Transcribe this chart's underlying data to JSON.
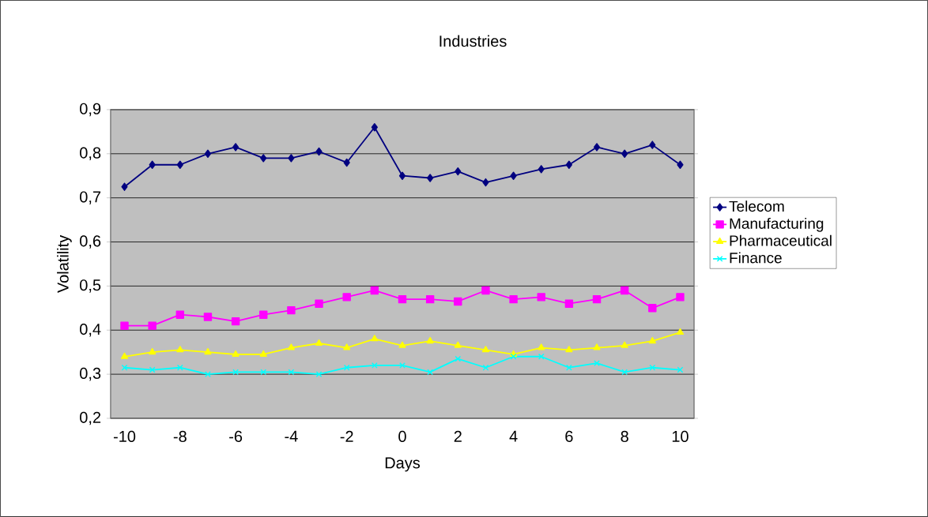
{
  "chart_data": {
    "type": "line",
    "title": "Industries",
    "xlabel": "Days",
    "ylabel": "Volatility",
    "x": [
      -10,
      -9,
      -8,
      -7,
      -6,
      -5,
      -4,
      -3,
      -2,
      -1,
      0,
      1,
      2,
      3,
      4,
      5,
      6,
      7,
      8,
      9,
      10
    ],
    "series": [
      {
        "name": "Telecom",
        "color": "#000080",
        "marker": "diamond",
        "values": [
          0.725,
          0.775,
          0.775,
          0.8,
          0.815,
          0.79,
          0.79,
          0.805,
          0.78,
          0.86,
          0.75,
          0.745,
          0.76,
          0.735,
          0.75,
          0.765,
          0.775,
          0.815,
          0.8,
          0.82,
          0.775
        ]
      },
      {
        "name": "Manufacturing",
        "color": "#ff00ff",
        "marker": "square",
        "values": [
          0.41,
          0.41,
          0.435,
          0.43,
          0.42,
          0.435,
          0.445,
          0.46,
          0.475,
          0.49,
          0.47,
          0.47,
          0.465,
          0.49,
          0.47,
          0.475,
          0.46,
          0.47,
          0.49,
          0.45,
          0.475
        ]
      },
      {
        "name": "Pharmaceutical",
        "color": "#ffff00",
        "marker": "triangle",
        "values": [
          0.34,
          0.35,
          0.355,
          0.35,
          0.345,
          0.345,
          0.36,
          0.37,
          0.36,
          0.38,
          0.365,
          0.375,
          0.365,
          0.355,
          0.345,
          0.36,
          0.355,
          0.36,
          0.365,
          0.375,
          0.395
        ]
      },
      {
        "name": "Finance",
        "color": "#00ffff",
        "marker": "cross",
        "values": [
          0.315,
          0.31,
          0.315,
          0.3,
          0.305,
          0.305,
          0.305,
          0.3,
          0.315,
          0.32,
          0.32,
          0.305,
          0.335,
          0.315,
          0.34,
          0.34,
          0.315,
          0.325,
          0.305,
          0.315,
          0.31
        ]
      }
    ],
    "xlim": [
      -10.5,
      10.5
    ],
    "xticks": [
      -10,
      -8,
      -6,
      -4,
      -2,
      0,
      2,
      4,
      6,
      8,
      10
    ],
    "ylim": [
      0.2,
      0.9
    ],
    "yticks": [
      {
        "value": 0.2,
        "label": "0,2"
      },
      {
        "value": 0.3,
        "label": "0,3"
      },
      {
        "value": 0.4,
        "label": "0,4"
      },
      {
        "value": 0.5,
        "label": "0,5"
      },
      {
        "value": 0.6,
        "label": "0,6"
      },
      {
        "value": 0.7,
        "label": "0,7"
      },
      {
        "value": 0.8,
        "label": "0,8"
      },
      {
        "value": 0.9,
        "label": "0,9"
      }
    ],
    "grid": "y",
    "legend": "right",
    "line_style": "solid"
  }
}
